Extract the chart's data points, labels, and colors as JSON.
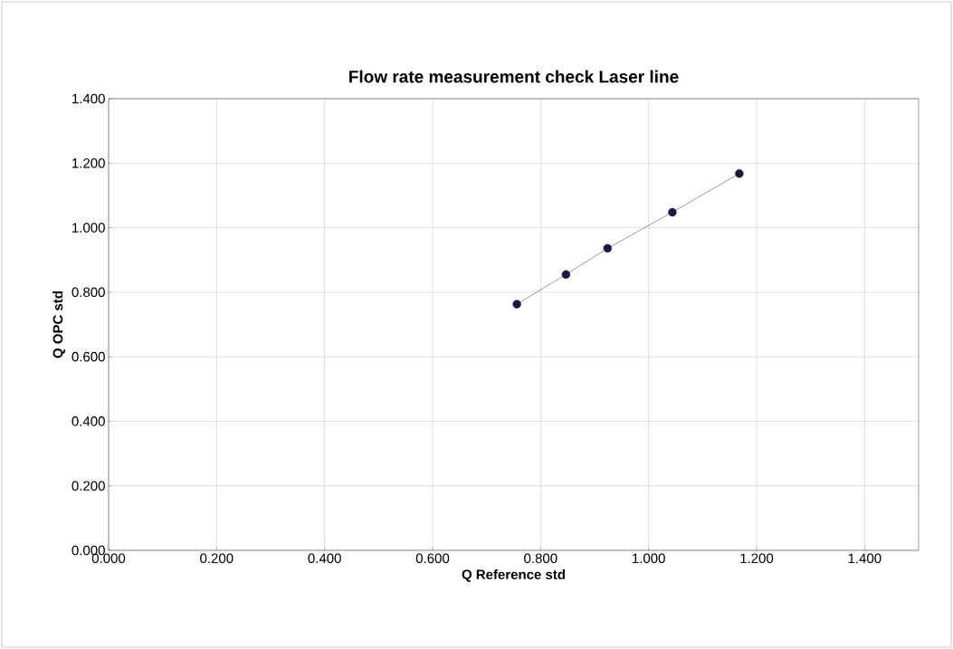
{
  "chart_data": {
    "type": "line",
    "title": "Flow rate measurement check Laser line",
    "xlabel": "Q Reference std",
    "ylabel": "Q OPC std",
    "x": [
      0.756,
      0.847,
      0.924,
      1.044,
      1.168
    ],
    "series": [
      {
        "color": "#1a1a40",
        "values": [
          0.763,
          0.855,
          0.936,
          1.048,
          1.168
        ]
      }
    ],
    "xlim": [
      0,
      1.5
    ],
    "ylim": [
      0,
      1.4
    ],
    "xticks": [
      {
        "value": 0,
        "label": "0.000"
      },
      {
        "value": 0.2,
        "label": "0.200"
      },
      {
        "value": 0.4,
        "label": "0.400"
      },
      {
        "value": 0.6,
        "label": "0.600"
      },
      {
        "value": 0.8,
        "label": "0.800"
      },
      {
        "value": 1.0,
        "label": "1.000"
      },
      {
        "value": 1.2,
        "label": "1.200"
      },
      {
        "value": 1.4,
        "label": "1.400"
      }
    ],
    "yticks": [
      {
        "value": 0,
        "label": "0.000"
      },
      {
        "value": 0.2,
        "label": "0.200"
      },
      {
        "value": 0.4,
        "label": "0.400"
      },
      {
        "value": 0.6,
        "label": "0.600"
      },
      {
        "value": 0.8,
        "label": "0.800"
      },
      {
        "value": 1.0,
        "label": "1.000"
      },
      {
        "value": 1.2,
        "label": "1.200"
      },
      {
        "value": 1.4,
        "label": "1.400"
      }
    ],
    "grid": true,
    "marker": "circle",
    "line_style": "solid"
  }
}
